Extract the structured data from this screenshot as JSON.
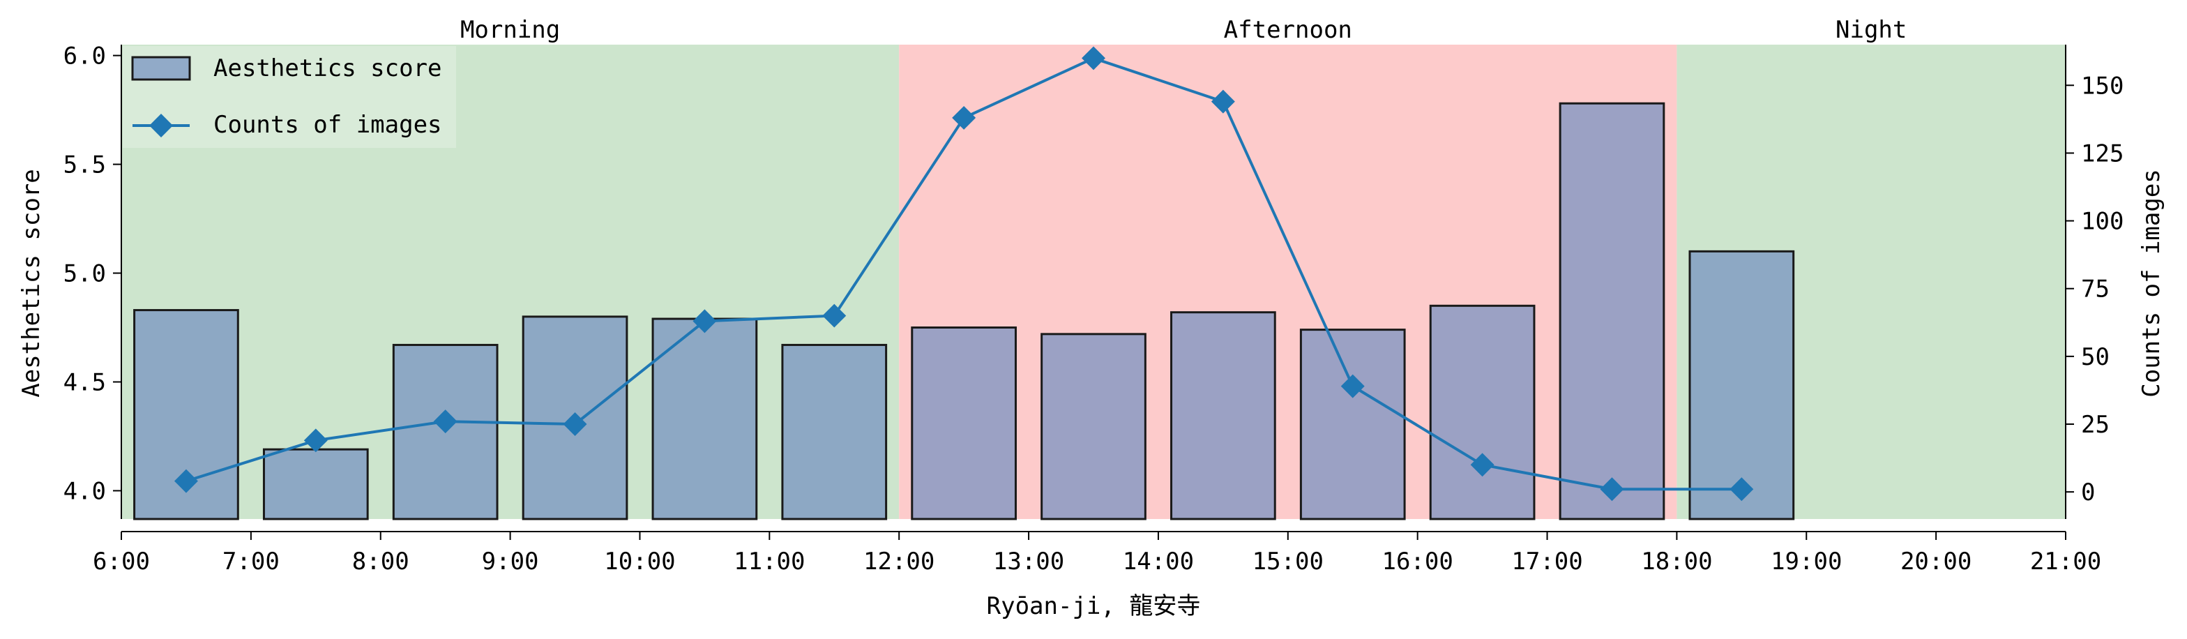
{
  "chart_data": {
    "type": "bar",
    "xlabel": "Ryōan-ji, 龍安寺",
    "x_ticks": [
      "6:00",
      "7:00",
      "8:00",
      "9:00",
      "10:00",
      "11:00",
      "12:00",
      "13:00",
      "14:00",
      "15:00",
      "16:00",
      "17:00",
      "18:00",
      "19:00",
      "20:00",
      "21:00"
    ],
    "xlim": [
      6,
      21
    ],
    "bar_centers": [
      6.5,
      7.5,
      8.5,
      9.5,
      10.5,
      11.5,
      12.5,
      13.5,
      14.5,
      15.5,
      16.5,
      17.5,
      18.5
    ],
    "y_left": {
      "label": "Aesthetics score",
      "ylim": [
        3.87,
        6.05
      ],
      "ticks": [
        "4.0",
        "4.5",
        "5.0",
        "5.5",
        "6.0"
      ],
      "tick_values": [
        4.0,
        4.5,
        5.0,
        5.5,
        6.0
      ]
    },
    "y_right": {
      "label": "Counts of images",
      "ylim": [
        -10,
        165
      ],
      "ticks": [
        "0",
        "25",
        "50",
        "75",
        "100",
        "125",
        "150"
      ],
      "tick_values": [
        0,
        25,
        50,
        75,
        100,
        125,
        150
      ]
    },
    "series": [
      {
        "name": "Aesthetics score",
        "kind": "bar",
        "axis": "left",
        "color": "#7590c0",
        "values": [
          4.83,
          4.19,
          4.67,
          4.8,
          4.79,
          4.67,
          4.75,
          4.72,
          4.82,
          4.74,
          4.85,
          5.78,
          5.1
        ]
      },
      {
        "name": "Counts of images",
        "kind": "line",
        "axis": "right",
        "marker": "diamond",
        "color": "#1f77b4",
        "values": [
          4,
          19,
          26,
          25,
          63,
          65,
          138,
          160,
          144,
          39,
          10,
          1,
          1
        ]
      }
    ],
    "periods": [
      {
        "label": "Morning",
        "start": 6,
        "end": 12,
        "color": "#cde5cd"
      },
      {
        "label": "Afternoon",
        "start": 12,
        "end": 18,
        "color": "#fdcbcb"
      },
      {
        "label": "Night",
        "start": 18,
        "end": 21,
        "color": "#cde5cd"
      }
    ],
    "legend": {
      "placement": "top-left",
      "items": [
        "Aesthetics score",
        "Counts of images"
      ]
    },
    "grid": false
  }
}
